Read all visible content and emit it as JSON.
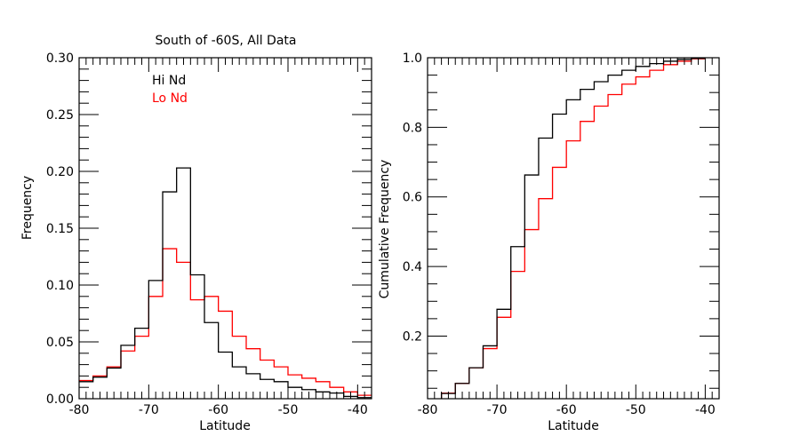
{
  "chart_data": [
    {
      "type": "histogram-step",
      "title": "South of -60S, All Data",
      "xlabel": "Latitude",
      "ylabel": "Frequency",
      "xlim": [
        -80,
        -38
      ],
      "ylim": [
        0.0,
        0.3
      ],
      "xticks": [
        -80,
        -70,
        -60,
        -50,
        -40
      ],
      "xtick_labels": [
        "-80",
        "-70",
        "-60",
        "-50",
        "-40"
      ],
      "yticks": [
        0.0,
        0.05,
        0.1,
        0.15,
        0.2,
        0.25,
        0.3
      ],
      "ytick_labels": [
        "0.00",
        "0.05",
        "0.10",
        "0.15",
        "0.20",
        "0.25",
        "0.30"
      ],
      "bin_edges": [
        -80,
        -78,
        -76,
        -74,
        -72,
        -70,
        -68,
        -66,
        -64,
        -62,
        -60,
        -58,
        -56,
        -54,
        -52,
        -50,
        -48,
        -46,
        -44,
        -42,
        -40,
        -38
      ],
      "legend_position": "top-left",
      "series": [
        {
          "name": "Hi Nd",
          "color": "#000000",
          "values": [
            0.015,
            0.019,
            0.027,
            0.047,
            0.062,
            0.104,
            0.182,
            0.203,
            0.109,
            0.067,
            0.041,
            0.028,
            0.022,
            0.017,
            0.015,
            0.01,
            0.008,
            0.006,
            0.005,
            0.002,
            0.001
          ]
        },
        {
          "name": "Lo Nd",
          "color": "#ff0000",
          "values": [
            0.016,
            0.02,
            0.028,
            0.042,
            0.055,
            0.09,
            0.132,
            0.12,
            0.087,
            0.09,
            0.077,
            0.055,
            0.044,
            0.034,
            0.028,
            0.021,
            0.018,
            0.015,
            0.01,
            0.006,
            0.003
          ]
        }
      ]
    },
    {
      "type": "cumulative-step",
      "title": "",
      "xlabel": "Latitude",
      "ylabel": "Cumulative Frequency",
      "xlim": [
        -80,
        -38
      ],
      "ylim": [
        0.02,
        1.0
      ],
      "xticks": [
        -80,
        -70,
        -60,
        -50,
        -40
      ],
      "xtick_labels": [
        "-80",
        "-70",
        "-60",
        "-50",
        "-40"
      ],
      "yticks": [
        0.2,
        0.4,
        0.6,
        0.8,
        1.0
      ],
      "ytick_labels": [
        "0.2",
        "0.4",
        "0.6",
        "0.8",
        "1.0"
      ],
      "bin_edges": [
        -78,
        -76,
        -74,
        -72,
        -70,
        -68,
        -66,
        -64,
        -62,
        -60,
        -58,
        -56,
        -54,
        -52,
        -50,
        -48,
        -46,
        -44,
        -42,
        -40
      ],
      "series": [
        {
          "name": "Hi Nd",
          "color": "#000000",
          "values": [
            0.035,
            0.064,
            0.109,
            0.172,
            0.277,
            0.457,
            0.663,
            0.769,
            0.838,
            0.879,
            0.909,
            0.931,
            0.95,
            0.964,
            0.975,
            0.983,
            0.99,
            0.995,
            0.998
          ]
        },
        {
          "name": "Lo Nd",
          "color": "#ff0000",
          "values": [
            0.036,
            0.064,
            0.109,
            0.164,
            0.254,
            0.386,
            0.506,
            0.595,
            0.685,
            0.761,
            0.817,
            0.861,
            0.894,
            0.924,
            0.945,
            0.964,
            0.98,
            0.99,
            0.997
          ]
        }
      ]
    }
  ]
}
